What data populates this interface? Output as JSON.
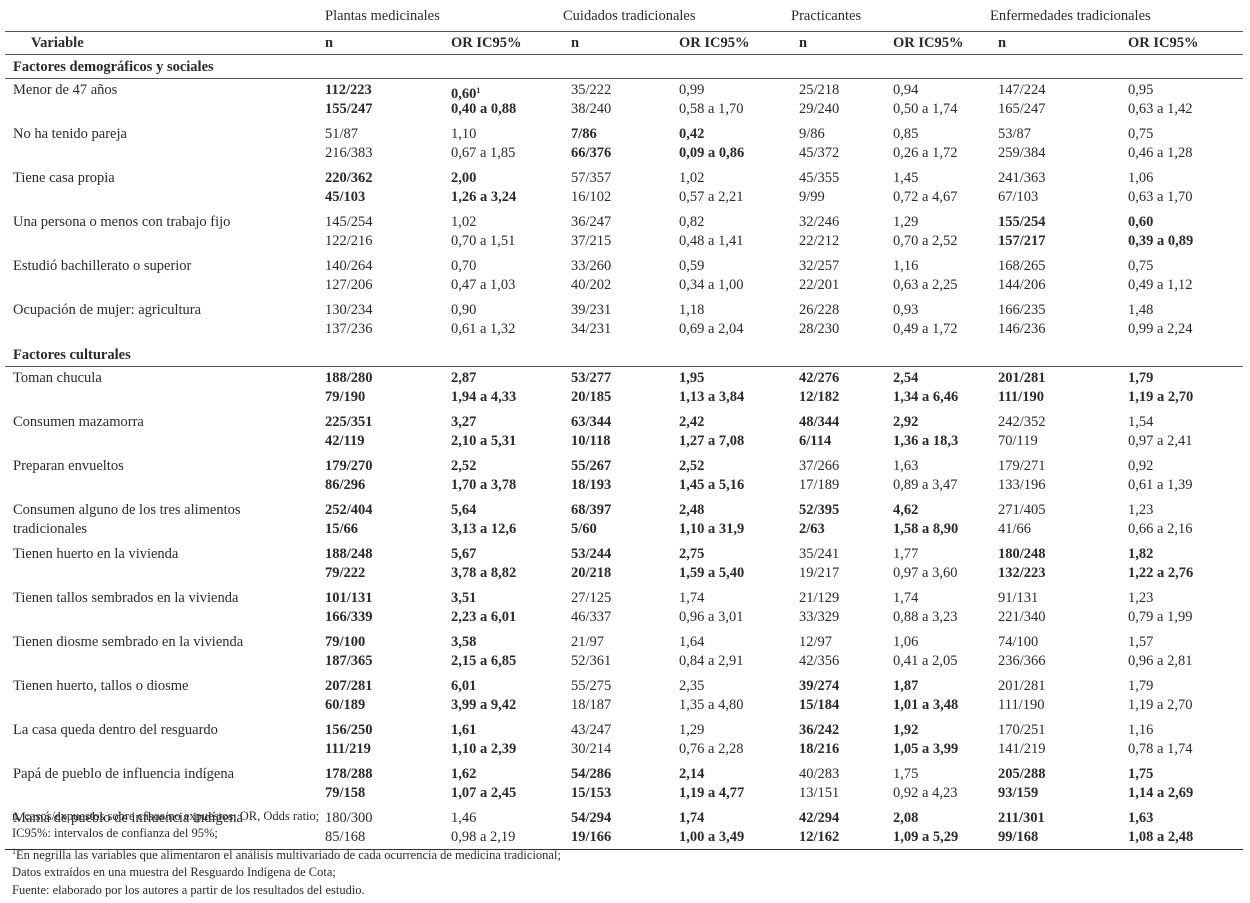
{
  "groups": [
    "Plantas medicinales",
    "Cuidados tradicionales",
    "Practicantes",
    "Enfermedades tradicionales"
  ],
  "subheaders": {
    "variable": "Variable",
    "n": "n",
    "or": "OR IC95%"
  },
  "sections": [
    {
      "title": "Factores demográficos y sociales",
      "rows": [
        {
          "label": "Menor de 47 años",
          "cells": [
            {
              "n1": "112/223",
              "n2": "155/247",
              "or1": "0,60",
              "or2": "0,40 a 0,88",
              "bold": true,
              "sup": "1"
            },
            {
              "n1": "35/222",
              "n2": "38/240",
              "or1": "0,99",
              "or2": "0,58 a 1,70",
              "bold": false
            },
            {
              "n1": "25/218",
              "n2": "29/240",
              "or1": "0,94",
              "or2": "0,50 a 1,74",
              "bold": false
            },
            {
              "n1": "147/224",
              "n2": "165/247",
              "or1": "0,95",
              "or2": "0,63 a 1,42",
              "bold": false
            }
          ]
        },
        {
          "label": "No ha tenido pareja",
          "cells": [
            {
              "n1": "51/87",
              "n2": "216/383",
              "or1": "1,10",
              "or2": "0,67 a 1,85",
              "bold": false
            },
            {
              "n1": "7/86",
              "n2": "66/376",
              "or1": "0,42",
              "or2": "0,09 a 0,86",
              "bold": true
            },
            {
              "n1": "9/86",
              "n2": "45/372",
              "or1": "0,85",
              "or2": "0,26 a 1,72",
              "bold": false
            },
            {
              "n1": "53/87",
              "n2": "259/384",
              "or1": "0,75",
              "or2": "0,46 a 1,28",
              "bold": false
            }
          ]
        },
        {
          "label": "Tiene casa propia",
          "cells": [
            {
              "n1": "220/362",
              "n2": "45/103",
              "or1": "2,00",
              "or2": "1,26 a 3,24",
              "bold": true
            },
            {
              "n1": "57/357",
              "n2": "16/102",
              "or1": "1,02",
              "or2": "0,57 a 2,21",
              "bold": false
            },
            {
              "n1": "45/355",
              "n2": "9/99",
              "or1": "1,45",
              "or2": "0,72 a 4,67",
              "bold": false
            },
            {
              "n1": "241/363",
              "n2": "67/103",
              "or1": "1,06",
              "or2": "0,63 a 1,70",
              "bold": false
            }
          ]
        },
        {
          "label": "Una persona o menos con trabajo fijo",
          "cells": [
            {
              "n1": "145/254",
              "n2": "122/216",
              "or1": "1,02",
              "or2": "0,70 a 1,51",
              "bold": false
            },
            {
              "n1": "36/247",
              "n2": "37/215",
              "or1": "0,82",
              "or2": "0,48 a 1,41",
              "bold": false
            },
            {
              "n1": "32/246",
              "n2": "22/212",
              "or1": "1,29",
              "or2": "0,70 a 2,52",
              "bold": false
            },
            {
              "n1": "155/254",
              "n2": "157/217",
              "or1": "0,60",
              "or2": "0,39 a 0,89",
              "bold": true
            }
          ]
        },
        {
          "label": "Estudió bachillerato o superior",
          "cells": [
            {
              "n1": "140/264",
              "n2": "127/206",
              "or1": "0,70",
              "or2": "0,47 a 1,03",
              "bold": false
            },
            {
              "n1": "33/260",
              "n2": "40/202",
              "or1": "0,59",
              "or2": "0,34 a 1,00",
              "bold": false
            },
            {
              "n1": "32/257",
              "n2": "22/201",
              "or1": "1,16",
              "or2": "0,63 a 2,25",
              "bold": false
            },
            {
              "n1": "168/265",
              "n2": "144/206",
              "or1": "0,75",
              "or2": "0,49 a 1,12",
              "bold": false
            }
          ]
        },
        {
          "label": "Ocupación de mujer: agricultura",
          "cells": [
            {
              "n1": "130/234",
              "n2": "137/236",
              "or1": "0,90",
              "or2": "0,61 a 1,32",
              "bold": false
            },
            {
              "n1": "39/231",
              "n2": "34/231",
              "or1": "1,18",
              "or2": "0,69 a 2,04",
              "bold": false
            },
            {
              "n1": "26/228",
              "n2": "28/230",
              "or1": "0,93",
              "or2": "0,49 a 1,72",
              "bold": false
            },
            {
              "n1": "166/235",
              "n2": "146/236",
              "or1": "1,48",
              "or2": "0,99 a 2,24",
              "bold": false
            }
          ]
        }
      ]
    },
    {
      "title": "Factores culturales",
      "rows": [
        {
          "label": "Toman chucula",
          "cells": [
            {
              "n1": "188/280",
              "n2": "79/190",
              "or1": "2,87",
              "or2": "1,94 a 4,33",
              "bold": true
            },
            {
              "n1": "53/277",
              "n2": "20/185",
              "or1": "1,95",
              "or2": "1,13 a 3,84",
              "bold": true
            },
            {
              "n1": "42/276",
              "n2": "12/182",
              "or1": "2,54",
              "or2": "1,34 a 6,46",
              "bold": true
            },
            {
              "n1": "201/281",
              "n2": "111/190",
              "or1": "1,79",
              "or2": "1,19 a 2,70",
              "bold": true
            }
          ]
        },
        {
          "label": "Consumen mazamorra",
          "cells": [
            {
              "n1": "225/351",
              "n2": "42/119",
              "or1": "3,27",
              "or2": "2,10 a 5,31",
              "bold": true
            },
            {
              "n1": "63/344",
              "n2": "10/118",
              "or1": "2,42",
              "or2": "1,27 a 7,08",
              "bold": true
            },
            {
              "n1": "48/344",
              "n2": "6/114",
              "or1": "2,92",
              "or2": "1,36 a 18,3",
              "bold": true
            },
            {
              "n1": "242/352",
              "n2": "70/119",
              "or1": "1,54",
              "or2": "0,97 a 2,41",
              "bold": false
            }
          ]
        },
        {
          "label": "Preparan envueltos",
          "cells": [
            {
              "n1": "179/270",
              "n2": "86/296",
              "or1": "2,52",
              "or2": "1,70 a 3,78",
              "bold": true
            },
            {
              "n1": "55/267",
              "n2": "18/193",
              "or1": "2,52",
              "or2": "1,45 a 5,16",
              "bold": true
            },
            {
              "n1": "37/266",
              "n2": "17/189",
              "or1": "1,63",
              "or2": "0,89 a 3,47",
              "bold": false
            },
            {
              "n1": "179/271",
              "n2": "133/196",
              "or1": "0,92",
              "or2": "0,61 a 1,39",
              "bold": false
            }
          ]
        },
        {
          "label": "Consumen alguno de los tres alimentos",
          "label2": "tradicionales",
          "cells": [
            {
              "n1": "252/404",
              "n2": "15/66",
              "or1": "5,64",
              "or2": "3,13 a 12,6",
              "bold": true
            },
            {
              "n1": "68/397",
              "n2": "5/60",
              "or1": "2,48",
              "or2": "1,10 a 31,9",
              "bold": true
            },
            {
              "n1": "52/395",
              "n2": "2/63",
              "or1": "4,62",
              "or2": "1,58 a 8,90",
              "bold": true
            },
            {
              "n1": "271/405",
              "n2": "41/66",
              "or1": "1,23",
              "or2": "0,66 a 2,16",
              "bold": false
            }
          ]
        },
        {
          "label": "Tienen huerto en la vivienda",
          "cells": [
            {
              "n1": "188/248",
              "n2": "79/222",
              "or1": "5,67",
              "or2": "3,78 a 8,82",
              "bold": true
            },
            {
              "n1": "53/244",
              "n2": "20/218",
              "or1": "2,75",
              "or2": "1,59 a 5,40",
              "bold": true
            },
            {
              "n1": "35/241",
              "n2": "19/217",
              "or1": "1,77",
              "or2": "0,97 a 3,60",
              "bold": false
            },
            {
              "n1": "180/248",
              "n2": "132/223",
              "or1": "1,82",
              "or2": "1,22 a 2,76",
              "bold": true
            }
          ]
        },
        {
          "label": "Tienen tallos sembrados en la vivienda",
          "cells": [
            {
              "n1": "101/131",
              "n2": "166/339",
              "or1": "3,51",
              "or2": "2,23 a 6,01",
              "bold": true
            },
            {
              "n1": "27/125",
              "n2": "46/337",
              "or1": "1,74",
              "or2": "0,96 a 3,01",
              "bold": false
            },
            {
              "n1": "21/129",
              "n2": "33/329",
              "or1": "1,74",
              "or2": "0,88 a 3,23",
              "bold": false
            },
            {
              "n1": "91/131",
              "n2": "221/340",
              "or1": "1,23",
              "or2": "0,79 a 1,99",
              "bold": false
            }
          ]
        },
        {
          "label": "Tienen diosme sembrado en la vivienda",
          "cells": [
            {
              "n1": "79/100",
              "n2": "187/365",
              "or1": "3,58",
              "or2": "2,15 a 6,85",
              "bold": true
            },
            {
              "n1": "21/97",
              "n2": "52/361",
              "or1": "1,64",
              "or2": "0,84 a 2,91",
              "bold": false
            },
            {
              "n1": "12/97",
              "n2": "42/356",
              "or1": "1,06",
              "or2": "0,41 a 2,05",
              "bold": false
            },
            {
              "n1": "74/100",
              "n2": "236/366",
              "or1": "1,57",
              "or2": "0,96 a 2,81",
              "bold": false
            }
          ]
        },
        {
          "label": "Tienen huerto, tallos o diosme",
          "cells": [
            {
              "n1": "207/281",
              "n2": "60/189",
              "or1": "6,01",
              "or2": "3,99 a 9,42",
              "bold": true
            },
            {
              "n1": "55/275",
              "n2": "18/187",
              "or1": "2,35",
              "or2": "1,35 a 4,80",
              "bold": false
            },
            {
              "n1": "39/274",
              "n2": "15/184",
              "or1": "1,87",
              "or2": "1,01 a 3,48",
              "bold": true
            },
            {
              "n1": "201/281",
              "n2": "111/190",
              "or1": "1,79",
              "or2": "1,19 a 2,70",
              "bold": false
            }
          ]
        },
        {
          "label": "La casa queda dentro del resguardo",
          "cells": [
            {
              "n1": "156/250",
              "n2": "111/219",
              "or1": "1,61",
              "or2": "1,10 a 2,39",
              "bold": true
            },
            {
              "n1": "43/247",
              "n2": "30/214",
              "or1": "1,29",
              "or2": "0,76 a 2,28",
              "bold": false
            },
            {
              "n1": "36/242",
              "n2": "18/216",
              "or1": "1,92",
              "or2": "1,05 a 3,99",
              "bold": true
            },
            {
              "n1": "170/251",
              "n2": "141/219",
              "or1": "1,16",
              "or2": "0,78 a 1,74",
              "bold": false
            }
          ]
        },
        {
          "label": "Papá de pueblo de influencia indígena",
          "cells": [
            {
              "n1": "178/288",
              "n2": "79/158",
              "or1": "1,62",
              "or2": "1,07 a 2,45",
              "bold": true
            },
            {
              "n1": "54/286",
              "n2": "15/153",
              "or1": "2,14",
              "or2": "1,19 a 4,77",
              "bold": true
            },
            {
              "n1": "40/283",
              "n2": "13/151",
              "or1": "1,75",
              "or2": "0,92 a 4,23",
              "bold": false
            },
            {
              "n1": "205/288",
              "n2": "93/159",
              "or1": "1,75",
              "or2": "1,14 a 2,69",
              "bold": true
            }
          ]
        },
        {
          "label": "Mamá de pueblo de influencia indígena",
          "cells": [
            {
              "n1": "180/300",
              "n2": "85/168",
              "or1": "1,46",
              "or2": "0,98 a 2,19",
              "bold": false
            },
            {
              "n1": "54/294",
              "n2": "19/166",
              "or1": "1,74",
              "or2": "1,00 a 3,49",
              "bold": true
            },
            {
              "n1": "42/294",
              "n2": "12/162",
              "or1": "2,08",
              "or2": "1,09 a 5,29",
              "bold": true
            },
            {
              "n1": "211/301",
              "n2": "99/168",
              "or1": "1,63",
              "or2": "1,08 a 2,48",
              "bold": true
            }
          ]
        }
      ]
    }
  ],
  "notes": [
    "n, casos/expuestos sobre casos/no expuestos; OR, Odds ratio;",
    "IC95%: intervalos de confianza del 95%;",
    "En negrilla las variables que alimentaron el análisis multivariado de cada ocurrencia de medicina tradicional;",
    "Datos extraídos en una muestra del Resguardo Indígena de Cota;",
    "Fuente: elaborado por los autores a partir de los resultados del estudio."
  ],
  "note_sup": "1"
}
